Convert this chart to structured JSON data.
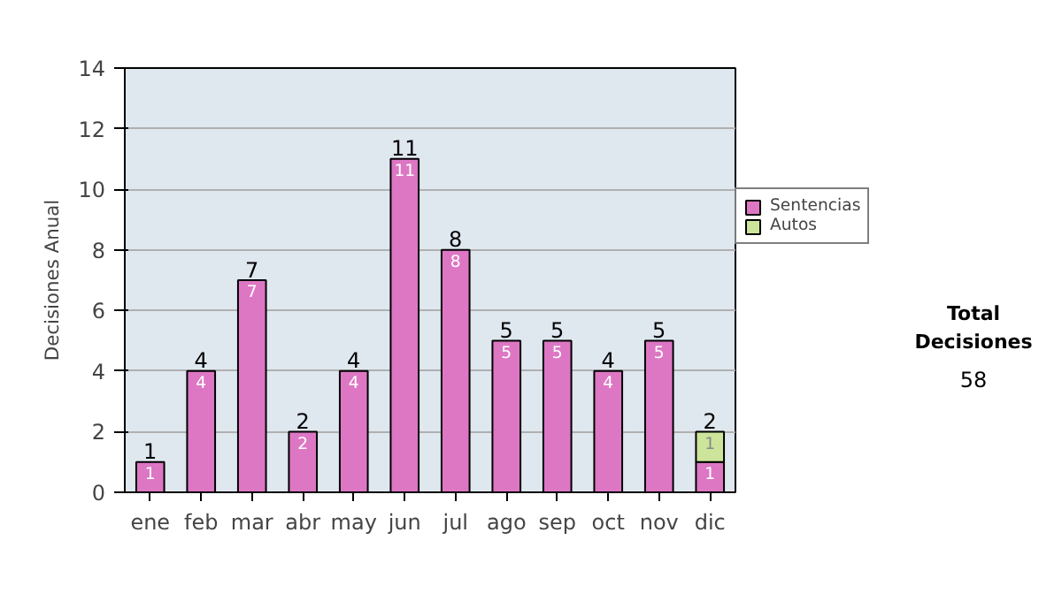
{
  "chart_data": {
    "type": "bar",
    "stacked": true,
    "ylabel": "Decisiones Anual",
    "categories": [
      "ene",
      "feb",
      "mar",
      "abr",
      "may",
      "jun",
      "jul",
      "ago",
      "sep",
      "oct",
      "nov",
      "dic"
    ],
    "series": [
      {
        "name": "Sentencias",
        "color": "#dd77c4",
        "values": [
          1,
          4,
          7,
          2,
          4,
          11,
          8,
          5,
          5,
          4,
          5,
          1
        ]
      },
      {
        "name": "Autos",
        "color": "#cce59a",
        "values": [
          null,
          null,
          null,
          null,
          null,
          null,
          null,
          null,
          null,
          null,
          null,
          1
        ]
      }
    ],
    "totals": [
      "1",
      "4",
      "7",
      "2",
      "4",
      "11",
      "8",
      "5",
      "5",
      "4",
      "5",
      "2"
    ],
    "data_labels": true,
    "ylim": [
      0,
      14
    ],
    "yticks": [
      0,
      2,
      4,
      6,
      8,
      10,
      12,
      14
    ],
    "grid": "y",
    "legend": "right",
    "annotations": [
      "Total Decisiones",
      "58"
    ]
  }
}
